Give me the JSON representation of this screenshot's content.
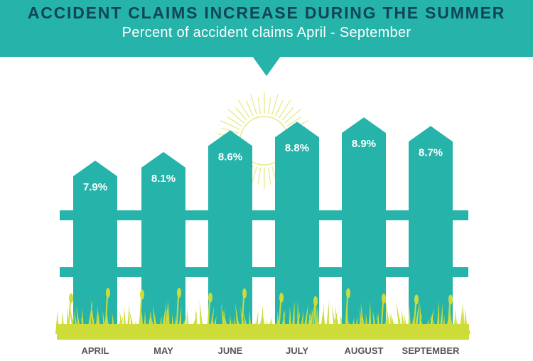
{
  "header": {
    "title": "ACCIDENT CLAIMS INCREASE DURING THE SUMMER",
    "subtitle": "Percent of accident claims April - September"
  },
  "colors": {
    "banner": "#26b3aa",
    "title": "#0f4656",
    "picket": "#26b3aa",
    "grass": "#cddc39",
    "sun": "#e6eb8c"
  },
  "chart_data": {
    "type": "bar",
    "categories": [
      "APRIL",
      "MAY",
      "JUNE",
      "JULY",
      "AUGUST",
      "SEPTEMBER"
    ],
    "values": [
      7.9,
      8.1,
      8.6,
      8.8,
      8.9,
      8.7
    ],
    "value_labels": [
      "7.9%",
      "8.1%",
      "8.6%",
      "8.8%",
      "8.9%",
      "8.7%"
    ],
    "title": "ACCIDENT CLAIMS INCREASE DURING THE SUMMER",
    "subtitle": "Percent of accident claims April - September",
    "xlabel": "",
    "ylabel": "",
    "grid": false
  }
}
